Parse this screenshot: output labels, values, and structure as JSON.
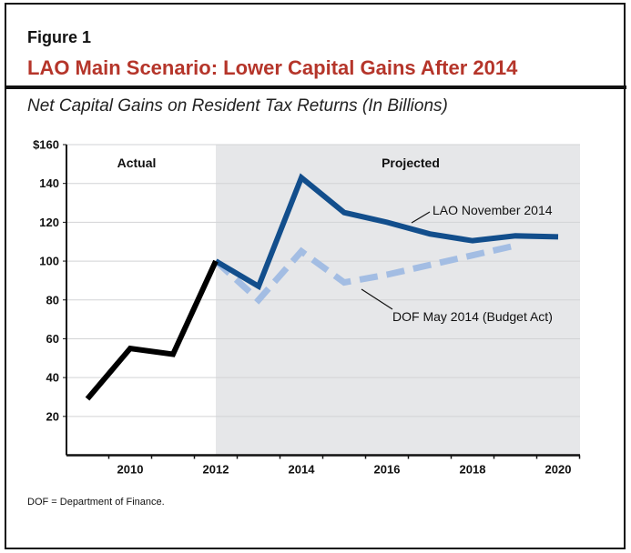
{
  "figure_label": "Figure 1",
  "title": "LAO Main Scenario: Lower Capital Gains After 2014",
  "subtitle": "Net Capital Gains on Resident Tax Returns (In Billions)",
  "footnote": "DOF = Department of Finance.",
  "chart_data": {
    "type": "line",
    "title": "Net Capital Gains on Resident Tax Returns (In Billions)",
    "xlabel": "",
    "ylabel": "",
    "ylim": [
      0,
      160
    ],
    "xlim": [
      2008.5,
      2020.5
    ],
    "y_ticks": [
      "$160",
      "140",
      "120",
      "100",
      "80",
      "60",
      "40",
      "20"
    ],
    "y_tick_values": [
      160,
      140,
      120,
      100,
      80,
      60,
      40,
      20
    ],
    "x_ticks": [
      "2010",
      "2012",
      "2014",
      "2016",
      "2018",
      "2020"
    ],
    "x_tick_values": [
      2010,
      2012,
      2014,
      2016,
      2018,
      2020
    ],
    "grid": true,
    "regions": [
      {
        "label": "Actual",
        "from": 2008.5,
        "to": 2012,
        "color": "#ffffff"
      },
      {
        "label": "Projected",
        "from": 2012,
        "to": 2020.5,
        "color": "#e6e7e9"
      }
    ],
    "series": [
      {
        "name": "",
        "style": "solid",
        "color": "#000000",
        "x": [
          2009,
          2010,
          2011,
          2012
        ],
        "y": [
          29,
          55,
          52,
          100
        ]
      },
      {
        "name": "LAO November 2014",
        "style": "solid",
        "color": "#124e8c",
        "x": [
          2012,
          2013,
          2014,
          2015,
          2016,
          2017,
          2018,
          2019,
          2020
        ],
        "y": [
          100,
          87,
          143,
          125,
          120,
          114,
          110.5,
          113,
          112.5
        ]
      },
      {
        "name": "DOF May 2014 (Budget Act)",
        "style": "dashed",
        "color": "#a3bde3",
        "x": [
          2012,
          2013,
          2014,
          2015,
          2016,
          2017,
          2018,
          2019
        ],
        "y": [
          100,
          80,
          105,
          89,
          93,
          98,
          103,
          108
        ]
      }
    ]
  }
}
